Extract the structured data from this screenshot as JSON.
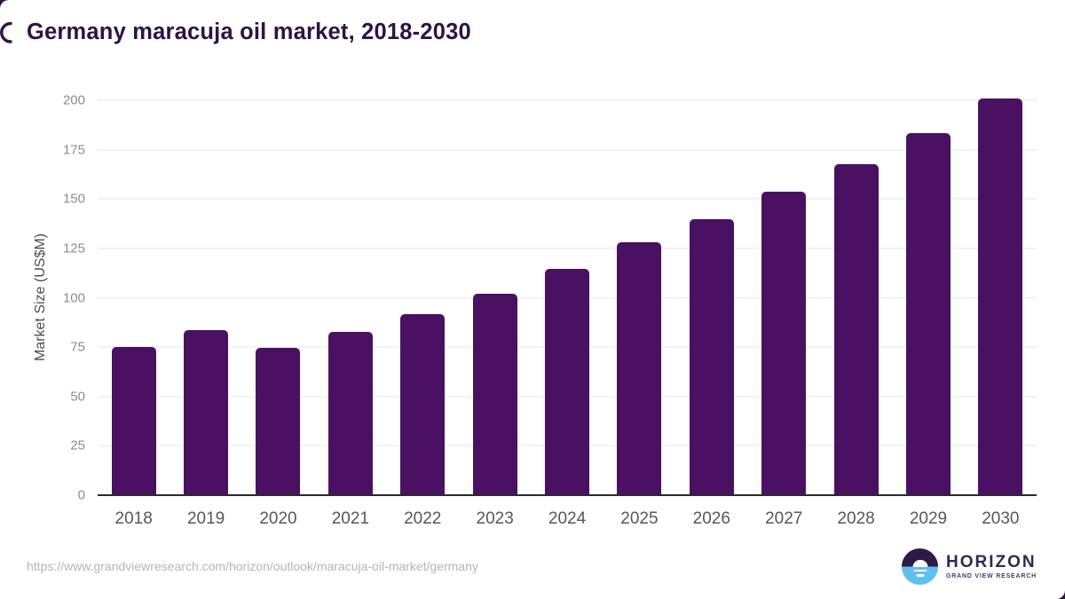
{
  "page": {
    "background_color": "#2d1742",
    "card_color": "#ffffff"
  },
  "chart_data": {
    "type": "bar",
    "title": "Germany maracuja oil market, 2018-2030",
    "ylabel": "Market Size (US$M)",
    "xlabel": "",
    "categories": [
      "2018",
      "2019",
      "2020",
      "2021",
      "2022",
      "2023",
      "2024",
      "2025",
      "2026",
      "2027",
      "2028",
      "2029",
      "2030"
    ],
    "values": [
      75.0,
      83.4,
      74.7,
      82.9,
      91.9,
      102.2,
      114.6,
      128.0,
      140.0,
      153.8,
      167.7,
      183.4,
      200.7
    ],
    "ylim": [
      0,
      200
    ],
    "yticks": [
      0,
      25,
      50,
      75,
      100,
      125,
      150,
      175,
      200
    ],
    "grid": "horizontal",
    "legend": false,
    "bar_color": "#4a1163"
  },
  "footer": {
    "source_url": "https://www.grandviewresearch.com/horizon/outlook/maracuja-oil-market/germany",
    "logo": {
      "brand": "HORIZON",
      "sub_brand": "GRAND VIEW RESEARCH",
      "icon": "horizon-sun-circle-icon",
      "icon_colors": {
        "top": "#2d1a47",
        "bottom": "#5ec1ec"
      }
    }
  },
  "colors": {
    "title": "#2e1344",
    "y_tick": "#8c8c8c",
    "x_tick": "#575757",
    "axis_title": "#4d4d4d",
    "gridline": "#e7e7e7",
    "axis_line": "#2b2b2b",
    "source_url": "#b5b5b5"
  }
}
